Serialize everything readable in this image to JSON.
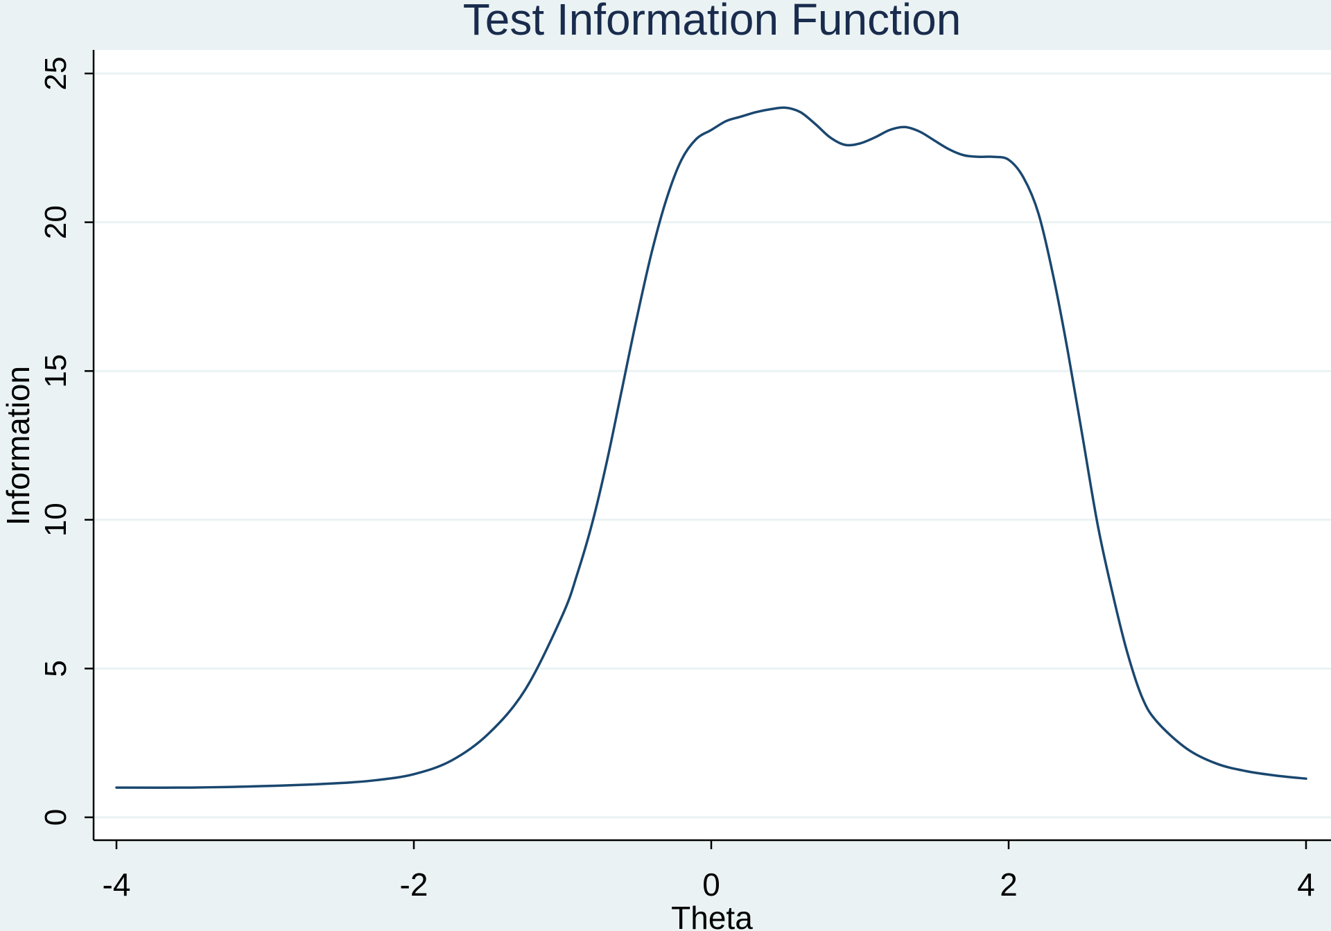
{
  "colors": {
    "background": "#eaf2f3",
    "plot_area": "#ffffff",
    "grid": "#eaf2f3",
    "line": "#1a476f",
    "axis": "#000000",
    "text": "#000000",
    "title": "#1a2c4d"
  },
  "chart_data": {
    "type": "line",
    "title": "Test Information Function",
    "xlabel": "Theta",
    "ylabel": "Information",
    "xlim": [
      -4,
      4
    ],
    "ylim": [
      0,
      25
    ],
    "x_ticks": [
      "-4",
      "-2",
      "0",
      "2",
      "4"
    ],
    "y_ticks": [
      "0",
      "5",
      "10",
      "15",
      "20",
      "25"
    ],
    "grid": true,
    "legend": "none",
    "series": [
      {
        "x": [
          -4.0,
          -3.5,
          -3.0,
          -2.5,
          -2.25,
          -2.0,
          -1.75,
          -1.5,
          -1.25,
          -1.0,
          -0.9,
          -0.8,
          -0.7,
          -0.6,
          -0.5,
          -0.4,
          -0.3,
          -0.2,
          -0.1,
          0.0,
          0.1,
          0.2,
          0.3,
          0.4,
          0.5,
          0.6,
          0.7,
          0.8,
          0.9,
          1.0,
          1.1,
          1.2,
          1.3,
          1.4,
          1.5,
          1.6,
          1.7,
          1.8,
          1.9,
          2.0,
          2.1,
          2.2,
          2.3,
          2.4,
          2.5,
          2.6,
          2.7,
          2.8,
          2.9,
          3.0,
          3.2,
          3.4,
          3.6,
          3.8,
          4.0
        ],
        "y": [
          1.0,
          1.0,
          1.05,
          1.15,
          1.25,
          1.45,
          1.9,
          2.8,
          4.3,
          6.8,
          8.2,
          9.9,
          12.0,
          14.4,
          16.8,
          19.0,
          20.8,
          22.1,
          22.8,
          23.1,
          23.4,
          23.55,
          23.7,
          23.8,
          23.85,
          23.7,
          23.3,
          22.85,
          22.6,
          22.65,
          22.85,
          23.1,
          23.2,
          23.05,
          22.75,
          22.45,
          22.25,
          22.2,
          22.2,
          22.1,
          21.5,
          20.3,
          18.2,
          15.6,
          12.7,
          9.8,
          7.5,
          5.5,
          4.0,
          3.2,
          2.3,
          1.8,
          1.55,
          1.4,
          1.3
        ]
      }
    ]
  }
}
